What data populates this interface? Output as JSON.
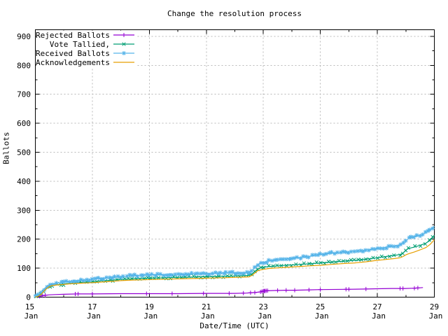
{
  "chart_data": {
    "type": "line",
    "title": "Change the resolution process",
    "xlabel": "Date/Time (UTC)",
    "ylabel": "Ballots",
    "background_color": "#ffffff",
    "axis_color": "#000000",
    "grid_color": "#b8b8b8",
    "grid": true,
    "legend_position": "top-left-inside",
    "ylim": [
      0,
      920
    ],
    "yticks": [
      0,
      100,
      200,
      300,
      400,
      500,
      600,
      700,
      800,
      900
    ],
    "yticks_minor": [
      50,
      150,
      250,
      350,
      450,
      550,
      650,
      750,
      850
    ],
    "xticks": [
      {
        "day": 15,
        "line1": "15",
        "line2": "Jan"
      },
      {
        "day": 17,
        "line1": "17",
        "line2": "Jan"
      },
      {
        "day": 19,
        "line1": "19",
        "line2": "Jan"
      },
      {
        "day": 21,
        "line1": "21",
        "line2": "Jan"
      },
      {
        "day": 23,
        "line1": "23",
        "line2": "Jan"
      },
      {
        "day": 25,
        "line1": "25",
        "line2": "Jan"
      },
      {
        "day": 27,
        "line1": "27",
        "line2": "Jan"
      },
      {
        "day": 29,
        "line1": "29",
        "line2": "Jan"
      }
    ],
    "xticks_minor": [
      16,
      18,
      20,
      22,
      24,
      26,
      28
    ],
    "xrange_days": [
      15,
      29
    ],
    "series": [
      {
        "name": "Rejected Ballots",
        "color": "#9400d3",
        "marker": "plus",
        "marker_days": [
          15.15,
          15.25,
          15.35,
          16.4,
          16.5,
          17.0,
          18.9,
          19.8,
          20.9,
          21.8,
          22.3,
          22.55,
          22.7,
          22.9,
          22.95,
          23.0,
          23.03,
          23.06,
          23.1,
          23.15,
          23.5,
          23.8,
          24.1,
          24.6,
          25.0,
          25.9,
          26.0,
          26.6,
          27.8,
          27.9,
          28.3,
          28.42
        ],
        "points": [
          [
            15.0,
            0
          ],
          [
            15.1,
            2
          ],
          [
            15.2,
            4
          ],
          [
            15.3,
            6
          ],
          [
            15.5,
            8
          ],
          [
            15.7,
            9
          ],
          [
            16.0,
            10
          ],
          [
            16.5,
            11
          ],
          [
            17.0,
            11
          ],
          [
            18.0,
            12
          ],
          [
            19.0,
            12
          ],
          [
            20.0,
            12
          ],
          [
            21.0,
            13
          ],
          [
            22.0,
            13
          ],
          [
            22.4,
            14
          ],
          [
            22.7,
            16
          ],
          [
            22.9,
            18
          ],
          [
            23.0,
            21
          ],
          [
            23.1,
            22
          ],
          [
            23.4,
            23
          ],
          [
            23.8,
            24
          ],
          [
            24.1,
            24
          ],
          [
            24.6,
            25
          ],
          [
            25.0,
            26
          ],
          [
            25.9,
            27
          ],
          [
            26.6,
            28
          ],
          [
            27.0,
            29
          ],
          [
            27.5,
            30
          ],
          [
            27.85,
            30
          ],
          [
            28.0,
            30
          ],
          [
            28.3,
            31
          ],
          [
            28.45,
            32
          ],
          [
            28.6,
            33
          ]
        ]
      },
      {
        "name": "Vote Tallied,",
        "color": "#009e73",
        "marker": "cross",
        "marker_spacing_px": 6,
        "points": [
          [
            15.0,
            0
          ],
          [
            15.1,
            4
          ],
          [
            15.2,
            11
          ],
          [
            15.3,
            22
          ],
          [
            15.4,
            32
          ],
          [
            15.5,
            38
          ],
          [
            15.6,
            41
          ],
          [
            15.75,
            43
          ],
          [
            15.9,
            44
          ],
          [
            16.0,
            45
          ],
          [
            16.2,
            48
          ],
          [
            16.4,
            50
          ],
          [
            16.6,
            51
          ],
          [
            16.8,
            52
          ],
          [
            17.0,
            53
          ],
          [
            17.3,
            56
          ],
          [
            17.6,
            58
          ],
          [
            18.0,
            61
          ],
          [
            18.4,
            63
          ],
          [
            18.8,
            65
          ],
          [
            19.2,
            66
          ],
          [
            19.6,
            67
          ],
          [
            20.0,
            68
          ],
          [
            20.4,
            69
          ],
          [
            20.8,
            70
          ],
          [
            21.2,
            71
          ],
          [
            21.6,
            72
          ],
          [
            22.0,
            73
          ],
          [
            22.3,
            74
          ],
          [
            22.5,
            75
          ],
          [
            22.6,
            80
          ],
          [
            22.7,
            89
          ],
          [
            22.8,
            97
          ],
          [
            22.9,
            101
          ],
          [
            23.0,
            103
          ],
          [
            23.2,
            106
          ],
          [
            23.5,
            108
          ],
          [
            23.8,
            110
          ],
          [
            24.0,
            111
          ],
          [
            24.3,
            113
          ],
          [
            24.6,
            115
          ],
          [
            25.0,
            118
          ],
          [
            25.4,
            121
          ],
          [
            25.8,
            124
          ],
          [
            26.2,
            127
          ],
          [
            26.6,
            131
          ],
          [
            27.0,
            136
          ],
          [
            27.3,
            140
          ],
          [
            27.6,
            144
          ],
          [
            27.8,
            147
          ],
          [
            27.9,
            152
          ],
          [
            28.0,
            162
          ],
          [
            28.1,
            168
          ],
          [
            28.3,
            173
          ],
          [
            28.5,
            179
          ],
          [
            28.7,
            186
          ],
          [
            28.85,
            196
          ],
          [
            29.0,
            213
          ]
        ]
      },
      {
        "name": "Received Ballots",
        "color": "#56b4e9",
        "marker": "star",
        "marker_spacing_px": 4.5,
        "points": [
          [
            15.0,
            2
          ],
          [
            15.1,
            7
          ],
          [
            15.2,
            15
          ],
          [
            15.3,
            27
          ],
          [
            15.4,
            37
          ],
          [
            15.5,
            43
          ],
          [
            15.6,
            46
          ],
          [
            15.75,
            48
          ],
          [
            15.9,
            50
          ],
          [
            16.0,
            51
          ],
          [
            16.2,
            54
          ],
          [
            16.4,
            57
          ],
          [
            16.6,
            58
          ],
          [
            16.8,
            60
          ],
          [
            17.0,
            62
          ],
          [
            17.3,
            65
          ],
          [
            17.6,
            68
          ],
          [
            18.0,
            71
          ],
          [
            18.4,
            74
          ],
          [
            18.8,
            76
          ],
          [
            19.2,
            77
          ],
          [
            19.6,
            78
          ],
          [
            20.0,
            79
          ],
          [
            20.4,
            80
          ],
          [
            20.8,
            81
          ],
          [
            21.2,
            82
          ],
          [
            21.6,
            83
          ],
          [
            22.0,
            84
          ],
          [
            22.3,
            85
          ],
          [
            22.5,
            86
          ],
          [
            22.6,
            92
          ],
          [
            22.7,
            103
          ],
          [
            22.8,
            112
          ],
          [
            22.9,
            117
          ],
          [
            23.0,
            120
          ],
          [
            23.2,
            125
          ],
          [
            23.5,
            129
          ],
          [
            23.8,
            132
          ],
          [
            24.0,
            134
          ],
          [
            24.3,
            137
          ],
          [
            24.6,
            140
          ],
          [
            25.0,
            148
          ],
          [
            25.4,
            152
          ],
          [
            25.8,
            155
          ],
          [
            26.2,
            158
          ],
          [
            26.6,
            162
          ],
          [
            27.0,
            167
          ],
          [
            27.3,
            172
          ],
          [
            27.6,
            176
          ],
          [
            27.8,
            180
          ],
          [
            27.9,
            186
          ],
          [
            28.0,
            196
          ],
          [
            28.1,
            203
          ],
          [
            28.3,
            208
          ],
          [
            28.5,
            214
          ],
          [
            28.7,
            222
          ],
          [
            28.85,
            232
          ],
          [
            29.0,
            245
          ]
        ]
      },
      {
        "name": "Acknowledgements",
        "color": "#e69f00",
        "marker": "none",
        "points": [
          [
            15.0,
            0
          ],
          [
            15.1,
            3
          ],
          [
            15.2,
            9
          ],
          [
            15.3,
            20
          ],
          [
            15.4,
            30
          ],
          [
            15.5,
            37
          ],
          [
            15.6,
            40
          ],
          [
            15.75,
            42
          ],
          [
            15.9,
            43
          ],
          [
            16.0,
            44
          ],
          [
            16.2,
            46
          ],
          [
            16.4,
            47
          ],
          [
            16.6,
            48
          ],
          [
            16.8,
            49
          ],
          [
            17.0,
            50
          ],
          [
            17.3,
            52
          ],
          [
            17.6,
            54
          ],
          [
            18.0,
            57
          ],
          [
            18.4,
            59
          ],
          [
            18.8,
            60
          ],
          [
            19.2,
            61
          ],
          [
            19.6,
            62
          ],
          [
            20.0,
            63
          ],
          [
            20.4,
            64
          ],
          [
            20.8,
            65
          ],
          [
            21.2,
            66
          ],
          [
            21.6,
            67
          ],
          [
            22.0,
            68
          ],
          [
            22.3,
            69
          ],
          [
            22.5,
            70
          ],
          [
            22.6,
            75
          ],
          [
            22.7,
            83
          ],
          [
            22.8,
            91
          ],
          [
            22.9,
            94
          ],
          [
            23.0,
            96
          ],
          [
            23.2,
            99
          ],
          [
            23.5,
            101
          ],
          [
            23.8,
            103
          ],
          [
            24.0,
            104
          ],
          [
            24.3,
            106
          ],
          [
            24.6,
            108
          ],
          [
            25.0,
            110
          ],
          [
            25.4,
            113
          ],
          [
            25.8,
            116
          ],
          [
            26.2,
            118
          ],
          [
            26.6,
            122
          ],
          [
            27.0,
            127
          ],
          [
            27.3,
            130
          ],
          [
            27.6,
            133
          ],
          [
            27.8,
            136
          ],
          [
            27.9,
            140
          ],
          [
            28.0,
            146
          ],
          [
            28.1,
            150
          ],
          [
            28.3,
            156
          ],
          [
            28.5,
            163
          ],
          [
            28.7,
            171
          ],
          [
            28.85,
            182
          ],
          [
            29.0,
            198
          ]
        ]
      }
    ]
  }
}
